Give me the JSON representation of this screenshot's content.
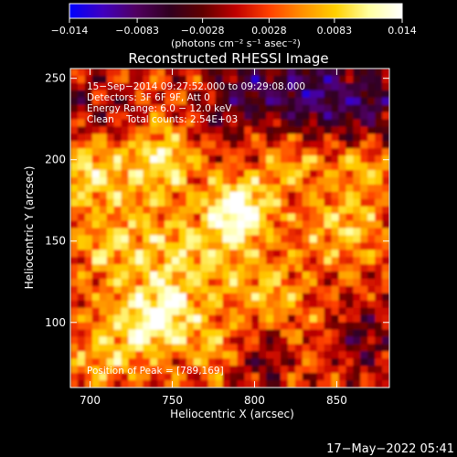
{
  "chart_data": {
    "type": "heatmap",
    "title": "Reconstructed RHESSI Image",
    "xlabel": "Heliocentric X (arcsec)",
    "ylabel": "Heliocentric Y (arcsec)",
    "xlim": [
      688,
      882
    ],
    "ylim": [
      60,
      256
    ],
    "x_ticks": [
      {
        "value": 700,
        "label": "700"
      },
      {
        "value": 750,
        "label": "750"
      },
      {
        "value": 800,
        "label": "800"
      },
      {
        "value": 850,
        "label": "850"
      }
    ],
    "y_ticks": [
      {
        "value": 100,
        "label": "100"
      },
      {
        "value": 150,
        "label": "150"
      },
      {
        "value": 200,
        "label": "200"
      },
      {
        "value": 250,
        "label": "250"
      }
    ],
    "colorbar": {
      "min": -0.014,
      "max": 0.014,
      "ticks": [
        {
          "value": -0.014,
          "label": "−0.014"
        },
        {
          "value": -0.0083,
          "label": "−0.0083"
        },
        {
          "value": -0.0028,
          "label": "−0.0028"
        },
        {
          "value": 0.0028,
          "label": "0.0028"
        },
        {
          "value": 0.0083,
          "label": "0.0083"
        },
        {
          "value": 0.014,
          "label": "0.014"
        }
      ],
      "units_label": "(photons cm⁻² s⁻¹ asec⁻²)",
      "colors": [
        "#0000ff",
        "#4000c0",
        "#500060",
        "#300020",
        "#600000",
        "#c00000",
        "#ff4000",
        "#ff9000",
        "#ffd000",
        "#ffffa0",
        "#ffffff"
      ]
    },
    "annotations": [
      "15−Sep−2014 09:27:52.000 to 09:29:08.000",
      "Detectors: 3F 6F 9F, Att 0",
      "Energy Range: 6.0 − 12.0 keV",
      "Clean    Total counts: 2.54E+03"
    ],
    "peak_label": "Position of Peak = [789,169]",
    "peak": [
      789,
      169
    ],
    "grid": false
  },
  "timestamp": "17−May−2022 05:41"
}
